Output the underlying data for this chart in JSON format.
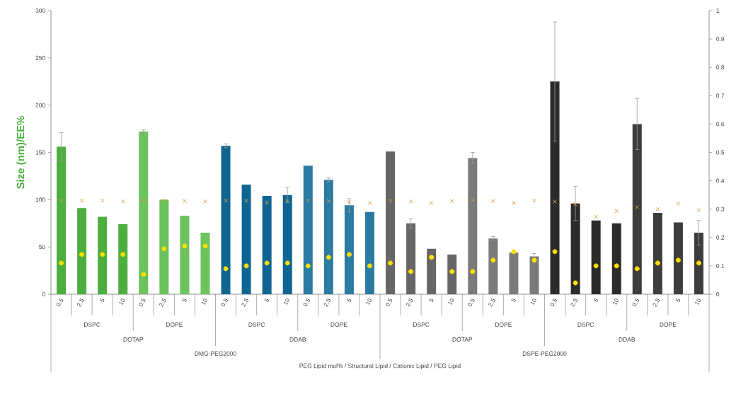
{
  "chart_data": {
    "type": "bar",
    "ylabel": "Size (nm)/EE%",
    "categories": [
      "0.5",
      "2.5",
      "5",
      "10",
      "0.5",
      "2.5",
      "5",
      "10",
      "0.5",
      "2.5",
      "5",
      "10",
      "0.5",
      "2.5",
      "5",
      "10",
      "0.5",
      "2.5",
      "5",
      "10",
      "0.5",
      "2.5",
      "5",
      "10",
      "0.5",
      "2.5",
      "5",
      "10",
      "0.5",
      "2.5",
      "5",
      "10"
    ],
    "ylim": [
      0,
      300
    ],
    "yticks": [
      0,
      50,
      100,
      150,
      200,
      250,
      300
    ],
    "y2lim": [
      0,
      1
    ],
    "y2ticks": [
      0,
      0.1,
      0.2,
      0.3,
      0.4,
      0.5,
      0.6,
      0.7,
      0.8,
      0.9,
      1
    ],
    "annotations": [
      "DSPC",
      "DOPE",
      "DSPC",
      "DOPE",
      "DSPC",
      "DOPE",
      "DSPC",
      "DOPE",
      "DOTAP",
      "DDAB",
      "DOTAP",
      "DDAB",
      "DMG-PEG2000",
      "DSPE-PEG2000",
      "PEG Lipid mol% / Structural Lipid / Cationic Lipid / PEG Lipid"
    ],
    "series": [
      {
        "values": [
          156,
          91,
          82,
          74,
          172,
          100,
          83,
          65,
          157,
          116,
          104,
          105,
          136,
          121,
          94,
          87,
          151,
          75,
          48,
          42,
          144,
          59,
          44,
          40,
          225,
          96,
          78,
          75,
          180,
          86,
          76,
          65
        ],
        "errors": [
          15,
          null,
          null,
          null,
          2,
          null,
          null,
          null,
          2,
          null,
          null,
          8,
          null,
          2,
          7,
          null,
          null,
          5,
          null,
          null,
          6,
          2,
          null,
          3,
          63,
          18,
          null,
          null,
          27,
          null,
          null,
          13
        ],
        "colors": [
          "#4cae3f",
          "#4cae3f",
          "#4cae3f",
          "#4cae3f",
          "#6cc25c",
          "#6cc25c",
          "#6cc25c",
          "#6cc25c",
          "#0e6591",
          "#0e6591",
          "#0e6591",
          "#0e6591",
          "#2b7ba3",
          "#2b7ba3",
          "#2b7ba3",
          "#2b7ba3",
          "#666666",
          "#666666",
          "#666666",
          "#666666",
          "#7a7a7a",
          "#7a7a7a",
          "#7a7a7a",
          "#7a7a7a",
          "#2b2b2b",
          "#2b2b2b",
          "#2b2b2b",
          "#2b2b2b",
          "#3d3d3d",
          "#3d3d3d",
          "#3d3d3d",
          "#3d3d3d"
        ]
      },
      {
        "type": "scatter",
        "marker": "cross",
        "color": "#d9a441",
        "values": [
          99,
          99,
          99,
          98,
          99,
          99,
          98.5,
          98,
          99,
          99,
          97,
          98.5,
          99,
          98.5,
          97.5,
          96.5,
          99,
          98,
          96.5,
          98.5,
          99.5,
          98.5,
          96.5,
          99,
          98,
          95,
          82,
          88,
          92,
          90,
          96,
          89
        ]
      },
      {
        "type": "scatter",
        "marker": "circle",
        "color": "#ffe000",
        "axis": "y2",
        "values": [
          0.11,
          0.14,
          0.14,
          0.14,
          0.07,
          0.16,
          0.17,
          0.17,
          0.09,
          0.1,
          0.11,
          0.11,
          0.1,
          0.13,
          0.14,
          0.1,
          0.11,
          0.08,
          0.13,
          0.08,
          0.08,
          0.12,
          0.15,
          0.12,
          0.15,
          0.04,
          0.1,
          0.1,
          0.09,
          0.11,
          0.12,
          0.11
        ]
      }
    ]
  }
}
